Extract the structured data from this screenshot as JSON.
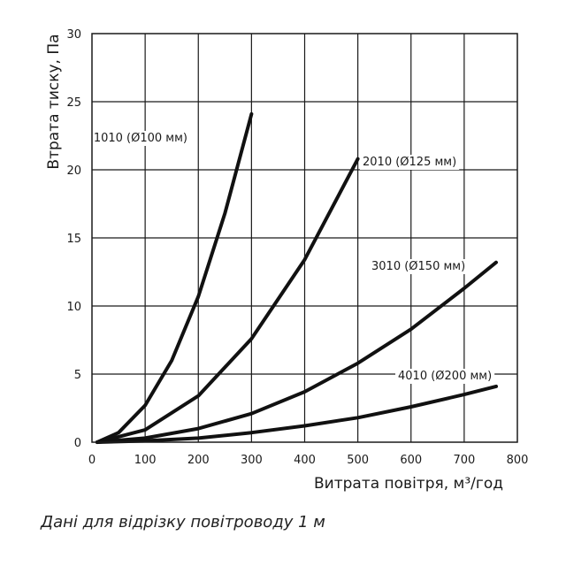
{
  "chart_data": {
    "type": "line",
    "xlabel": "Витрата повітря, м³/год",
    "ylabel": "Втрата тиску, Па",
    "xlim": [
      0,
      800
    ],
    "ylim": [
      0,
      30
    ],
    "x_ticks": [
      "0",
      "100",
      "200",
      "300",
      "400",
      "500",
      "600",
      "700",
      "800"
    ],
    "y_ticks": [
      "0",
      "5",
      "10",
      "15",
      "20",
      "25",
      "30"
    ],
    "grid": true,
    "series": [
      {
        "name": "1010 (Ø100 мм)",
        "x": [
          10,
          50,
          100,
          150,
          200,
          250,
          300
        ],
        "y": [
          0.0,
          0.7,
          2.7,
          6.0,
          10.7,
          16.8,
          24.1
        ]
      },
      {
        "name": "2010 (Ø125 мм)",
        "x": [
          10,
          100,
          200,
          300,
          400,
          500
        ],
        "y": [
          0.0,
          0.9,
          3.4,
          7.6,
          13.4,
          20.8
        ]
      },
      {
        "name": "3010 (Ø150 мм)",
        "x": [
          10,
          100,
          200,
          300,
          400,
          500,
          600,
          700,
          760
        ],
        "y": [
          0.0,
          0.3,
          1.0,
          2.1,
          3.7,
          5.8,
          8.3,
          11.3,
          13.2
        ]
      },
      {
        "name": "4010 (Ø200 мм)",
        "x": [
          10,
          100,
          200,
          300,
          400,
          500,
          600,
          700,
          760
        ],
        "y": [
          0.0,
          0.1,
          0.3,
          0.7,
          1.2,
          1.8,
          2.6,
          3.5,
          4.1
        ]
      }
    ]
  },
  "caption": "Дані для відрізку повітроводу 1 м"
}
